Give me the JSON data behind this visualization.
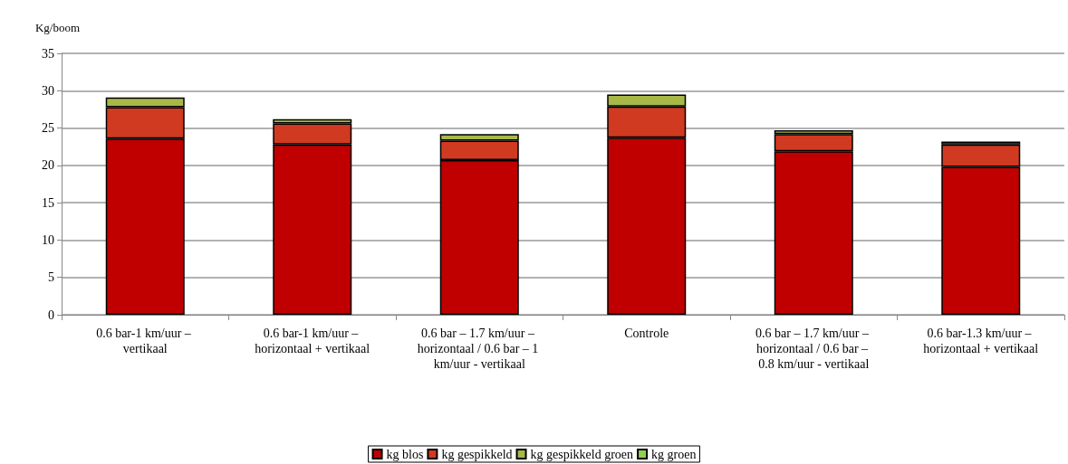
{
  "chart_data": {
    "type": "bar",
    "stacked": true,
    "ylabel": "Kg/boom",
    "categories": [
      "0.6 bar-1 km/uur – vertikaal",
      "0.6 bar-1 km/uur – horizontaal + vertikaal",
      "0.6 bar – 1.7 km/uur – horizontaal / 0.6 bar – 1 km/uur - vertikaal",
      "Controle",
      "0.6 bar – 1.7 km/uur – horizontaal / 0.6 bar – 0.8 km/uur - vertikaal",
      "0.6 bar-1.3 km/uur – horizontaal + vertikaal"
    ],
    "series": [
      {
        "name": "kg blos",
        "color": "#c00000",
        "values": [
          23.6,
          22.8,
          20.7,
          23.7,
          21.9,
          19.8
        ]
      },
      {
        "name": "kg gespikkeld",
        "color": "#d03a20",
        "values": [
          4.2,
          2.8,
          2.6,
          4.2,
          2.3,
          3.0
        ]
      },
      {
        "name": "kg gespikkeld groen",
        "color": "#a8b848",
        "values": [
          1.3,
          0.6,
          0.9,
          1.6,
          0.5,
          0.4
        ]
      },
      {
        "name": "kg groen",
        "color": "#92d050",
        "values": [
          null,
          null,
          null,
          null,
          null,
          null
        ]
      }
    ],
    "ylim": [
      0,
      35
    ],
    "yticks": [
      0,
      5,
      10,
      15,
      20,
      25,
      30,
      35
    ],
    "grid": "y",
    "legend": "bottom"
  }
}
